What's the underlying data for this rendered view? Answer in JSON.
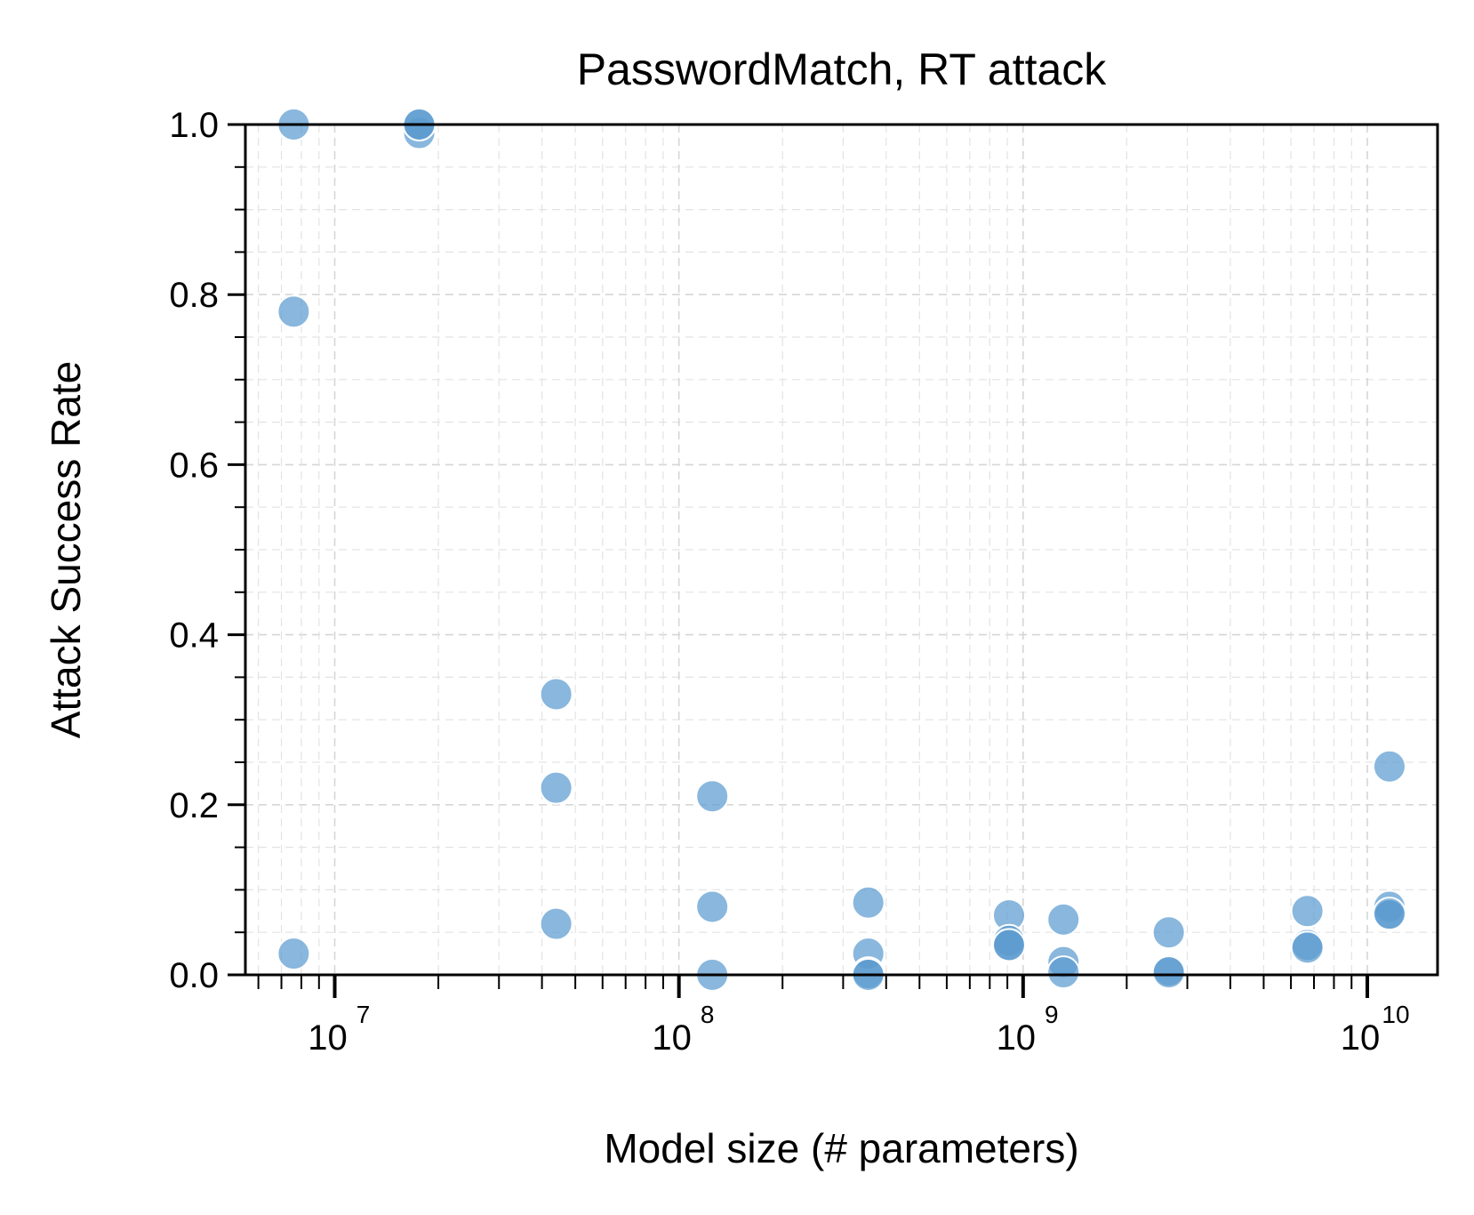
{
  "chart_data": {
    "type": "scatter",
    "title": "PasswordMatch, RT attack",
    "xlabel": "Model size (# parameters)",
    "ylabel": "Attack Success Rate",
    "xscale": "log",
    "xlim": [
      5500000,
      16000000000
    ],
    "ylim": [
      0.0,
      1.0
    ],
    "grid": true,
    "point_color": "#5b9bd0",
    "x_ticks": [
      {
        "value": 10000000,
        "base": "10",
        "exp": "7"
      },
      {
        "value": 100000000,
        "base": "10",
        "exp": "8"
      },
      {
        "value": 1000000000,
        "base": "10",
        "exp": "9"
      },
      {
        "value": 10000000000,
        "base": "10",
        "exp": "10"
      }
    ],
    "y_ticks": [
      {
        "value": 0.0,
        "label": "0.0"
      },
      {
        "value": 0.2,
        "label": "0.2"
      },
      {
        "value": 0.4,
        "label": "0.4"
      },
      {
        "value": 0.6,
        "label": "0.6"
      },
      {
        "value": 0.8,
        "label": "0.8"
      },
      {
        "value": 1.0,
        "label": "1.0"
      }
    ],
    "points": [
      {
        "x": 7600000,
        "y": 1.0
      },
      {
        "x": 7600000,
        "y": 0.78
      },
      {
        "x": 7600000,
        "y": 0.025
      },
      {
        "x": 17600000,
        "y": 0.99
      },
      {
        "x": 17600000,
        "y": 1.0
      },
      {
        "x": 17600000,
        "y": 1.0
      },
      {
        "x": 44000000,
        "y": 0.33
      },
      {
        "x": 44000000,
        "y": 0.22
      },
      {
        "x": 44000000,
        "y": 0.06
      },
      {
        "x": 125000000,
        "y": 0.21
      },
      {
        "x": 125000000,
        "y": 0.08
      },
      {
        "x": 125000000,
        "y": 0.0
      },
      {
        "x": 355000000,
        "y": 0.085
      },
      {
        "x": 355000000,
        "y": 0.025
      },
      {
        "x": 355000000,
        "y": 0.002
      },
      {
        "x": 355000000,
        "y": 0.0
      },
      {
        "x": 910000000,
        "y": 0.07
      },
      {
        "x": 910000000,
        "y": 0.04
      },
      {
        "x": 910000000,
        "y": 0.035
      },
      {
        "x": 910000000,
        "y": 0.035
      },
      {
        "x": 1310000000,
        "y": 0.065
      },
      {
        "x": 1310000000,
        "y": 0.015
      },
      {
        "x": 1310000000,
        "y": 0.003
      },
      {
        "x": 2650000000,
        "y": 0.05
      },
      {
        "x": 2650000000,
        "y": 0.005
      },
      {
        "x": 2650000000,
        "y": 0.003
      },
      {
        "x": 6700000000,
        "y": 0.075
      },
      {
        "x": 6700000000,
        "y": 0.035
      },
      {
        "x": 6700000000,
        "y": 0.032
      },
      {
        "x": 11600000000,
        "y": 0.245
      },
      {
        "x": 11600000000,
        "y": 0.08
      },
      {
        "x": 11600000000,
        "y": 0.07
      },
      {
        "x": 11600000000,
        "y": 0.072
      }
    ]
  }
}
